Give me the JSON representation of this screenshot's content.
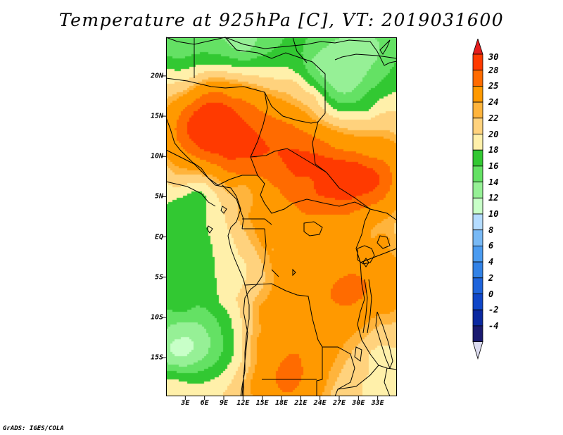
{
  "title": "Temperature at 925hPa [C], VT: 2019031600",
  "credit": "GrADS: IGES/COLA",
  "map": {
    "lat_range": [
      -19.8,
      24.8
    ],
    "lon_range": [
      0,
      36
    ],
    "lat_labels": [
      {
        "lat": 20,
        "text": "20N"
      },
      {
        "lat": 15,
        "text": "15N"
      },
      {
        "lat": 10,
        "text": "10N"
      },
      {
        "lat": 5,
        "text": "5N"
      },
      {
        "lat": 0,
        "text": "EQ"
      },
      {
        "lat": -5,
        "text": "5S"
      },
      {
        "lat": -10,
        "text": "10S"
      },
      {
        "lat": -15,
        "text": "15S"
      }
    ],
    "lon_labels": [
      {
        "lon": 3,
        "text": "3E"
      },
      {
        "lon": 6,
        "text": "6E"
      },
      {
        "lon": 9,
        "text": "9E"
      },
      {
        "lon": 12,
        "text": "12E"
      },
      {
        "lon": 15,
        "text": "15E"
      },
      {
        "lon": 18,
        "text": "18E"
      },
      {
        "lon": 21,
        "text": "21E"
      },
      {
        "lon": 24,
        "text": "24E"
      },
      {
        "lon": 27,
        "text": "27E"
      },
      {
        "lon": 30,
        "text": "30E"
      },
      {
        "lon": 33,
        "text": "33E"
      }
    ]
  },
  "legend": {
    "labels": [
      "30",
      "28",
      "25",
      "24",
      "22",
      "20",
      "18",
      "16",
      "14",
      "12",
      "10",
      "8",
      "6",
      "4",
      "2",
      "0",
      "-2",
      "-4"
    ],
    "colors": [
      "#ff3a00",
      "#ff6b00",
      "#ff9900",
      "#ffb43c",
      "#ffd27d",
      "#fff0aa",
      "#32c832",
      "#64e164",
      "#96f096",
      "#c8ffc8",
      "#b4dcff",
      "#78b9f5",
      "#4b9bf0",
      "#3282e6",
      "#1e64dc",
      "#0f46c8",
      "#0a28a0",
      "#a0a0e6"
    ],
    "top_color": "#e51c1c",
    "bottom_color": "#dcdcf0"
  }
}
